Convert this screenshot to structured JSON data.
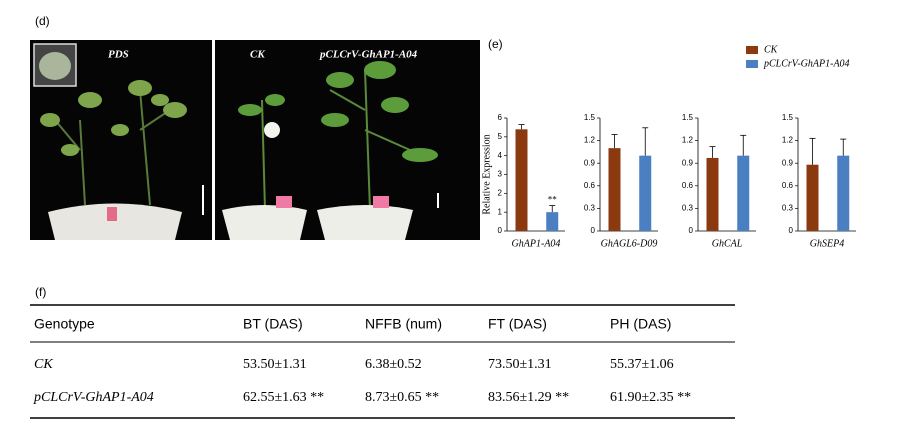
{
  "panels": {
    "d": "(d)",
    "e": "(e)",
    "f": "(f)"
  },
  "photos": {
    "left_label": "PDS",
    "right_label_1": "CK",
    "right_label_2": "pCLCrV-GhAP1-A04"
  },
  "chart_data": [
    {
      "type": "bar",
      "y_label": "Relative Expression",
      "categories": [
        "GhAP1-A04"
      ],
      "annotation": "**",
      "ylim": [
        0,
        6
      ],
      "yticks": [
        0,
        1,
        2,
        3,
        4,
        5,
        6
      ],
      "series": [
        {
          "name": "CK",
          "color": "#8b3a0f",
          "values": [
            5.4
          ],
          "errors": [
            0.25
          ]
        },
        {
          "name": "pCLCrV-GhAP1-A04",
          "color": "#4a7fc1",
          "values": [
            1.0
          ],
          "errors": [
            0.35
          ]
        }
      ]
    },
    {
      "type": "bar",
      "categories": [
        "GhAGL6-D09"
      ],
      "ylim": [
        0,
        1.5
      ],
      "yticks": [
        0,
        0.3,
        0.6,
        0.9,
        1.2,
        1.5
      ],
      "series": [
        {
          "color": "#8b3a0f",
          "values": [
            1.1
          ],
          "errors": [
            0.18
          ]
        },
        {
          "color": "#4a7fc1",
          "values": [
            1.0
          ],
          "errors": [
            0.37
          ]
        }
      ]
    },
    {
      "type": "bar",
      "categories": [
        "GhCAL"
      ],
      "ylim": [
        0,
        1.5
      ],
      "yticks": [
        0,
        0.3,
        0.6,
        0.9,
        1.2,
        1.5
      ],
      "series": [
        {
          "color": "#8b3a0f",
          "values": [
            0.97
          ],
          "errors": [
            0.15
          ]
        },
        {
          "color": "#4a7fc1",
          "values": [
            1.0
          ],
          "errors": [
            0.27
          ]
        }
      ]
    },
    {
      "type": "bar",
      "categories": [
        "GhSEP4"
      ],
      "ylim": [
        0,
        1.5
      ],
      "yticks": [
        0,
        0.3,
        0.6,
        0.9,
        1.2,
        1.5
      ],
      "series": [
        {
          "color": "#8b3a0f",
          "values": [
            0.88
          ],
          "errors": [
            0.35
          ]
        },
        {
          "color": "#4a7fc1",
          "values": [
            1.0
          ],
          "errors": [
            0.22
          ]
        }
      ]
    }
  ],
  "table": {
    "header": [
      "Genotype",
      "BT (DAS)",
      "NFFB (num)",
      "FT (DAS)",
      "PH (DAS)"
    ],
    "rows": [
      [
        "CK",
        "53.50±1.31",
        "6.38±0.52",
        "73.50±1.31",
        "55.37±1.06"
      ],
      [
        "pCLCrV-GhAP1-A04",
        "62.55±1.63 **",
        "8.73±0.65 **",
        "83.56±1.29 **",
        "61.90±2.35 **"
      ]
    ]
  }
}
